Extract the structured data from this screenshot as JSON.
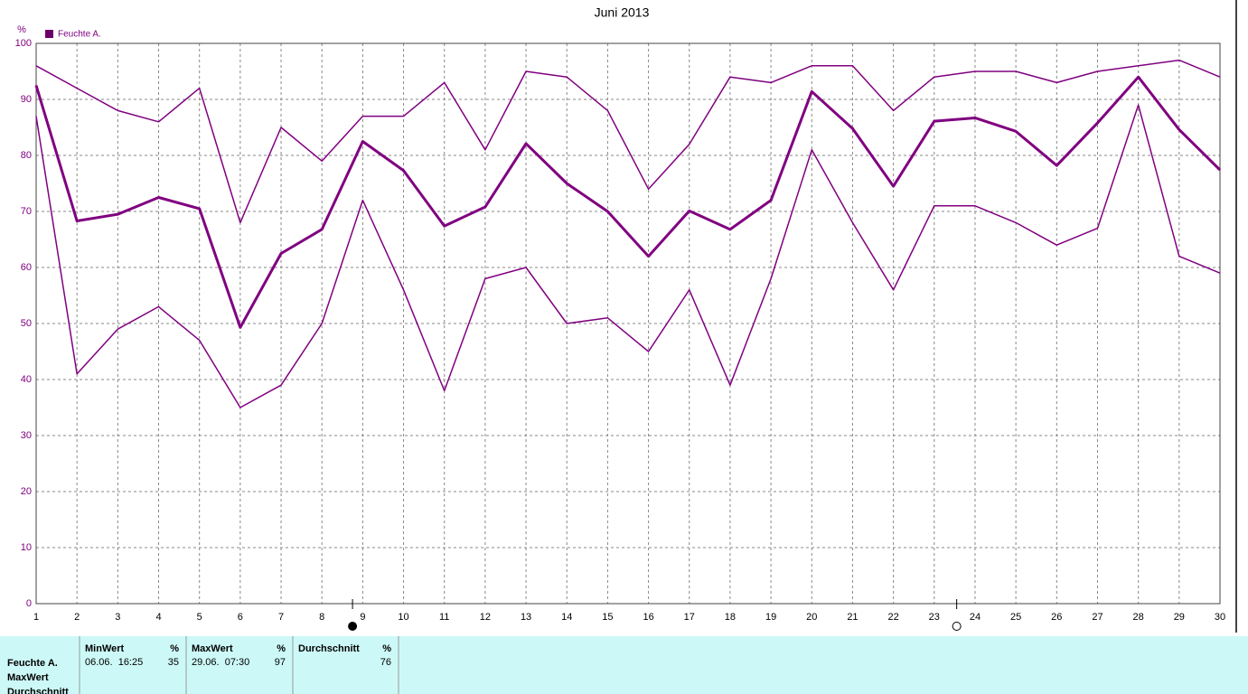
{
  "chart_data": {
    "type": "line",
    "title": "Juni 2013",
    "y_label": "%",
    "legend": "Feuchte A.",
    "legend_color": "#6a006a",
    "x": [
      1,
      2,
      3,
      4,
      5,
      6,
      7,
      8,
      9,
      10,
      11,
      12,
      13,
      14,
      15,
      16,
      17,
      18,
      19,
      20,
      21,
      22,
      23,
      24,
      25,
      26,
      27,
      28,
      29,
      30
    ],
    "xlim": [
      1,
      30
    ],
    "xticks": [
      1,
      2,
      3,
      4,
      5,
      6,
      7,
      8,
      9,
      10,
      11,
      12,
      13,
      14,
      15,
      16,
      17,
      18,
      19,
      20,
      21,
      22,
      23,
      24,
      25,
      26,
      27,
      28,
      29,
      30
    ],
    "ylim": [
      0,
      100
    ],
    "yticks": [
      0,
      10,
      20,
      30,
      40,
      50,
      60,
      70,
      80,
      90,
      100
    ],
    "grid": true,
    "series": [
      {
        "color": "#800080",
        "line_width": 1.5,
        "values": [
          96,
          92,
          88,
          86,
          92,
          68,
          85,
          79,
          87,
          87,
          93,
          81,
          95,
          94,
          88,
          74,
          82,
          94,
          93,
          96,
          96,
          88,
          94,
          95,
          95,
          93,
          95,
          96,
          97,
          94
        ]
      },
      {
        "color": "#800080",
        "line_width": 3,
        "values": [
          92.5,
          68.3,
          69.5,
          72.5,
          70.5,
          49.3,
          62.5,
          66.8,
          82.5,
          77.3,
          67.4,
          70.8,
          82.1,
          75,
          70,
          62,
          70.1,
          66.8,
          72,
          91.4,
          84.8,
          74.5,
          86.1,
          86.7,
          84.3,
          78.2,
          85.8,
          94,
          84.6,
          77.4
        ]
      },
      {
        "color": "#800080",
        "line_width": 1.5,
        "values": [
          87,
          41,
          49,
          53,
          47,
          35,
          39,
          50,
          72,
          56,
          38,
          58,
          60,
          50,
          51,
          45,
          56,
          39,
          58,
          81,
          68,
          56,
          71,
          71,
          68,
          64,
          67,
          89,
          62,
          59
        ]
      }
    ],
    "markers": [
      {
        "x": 8.75,
        "filled": true
      },
      {
        "x": 23.55,
        "filled": false
      }
    ]
  },
  "table": {
    "row_labels": [
      "Feuchte A.",
      "MaxWert",
      "Durchschnitt"
    ],
    "columns": [
      {
        "header": "MinWert",
        "unit": "%",
        "time": "06.06.  16:25",
        "value": "35"
      },
      {
        "header": "MaxWert",
        "unit": "%",
        "time": "29.06.  07:30",
        "value": "97"
      },
      {
        "header": "Durchschnitt",
        "unit": "%",
        "value": "76"
      }
    ]
  }
}
